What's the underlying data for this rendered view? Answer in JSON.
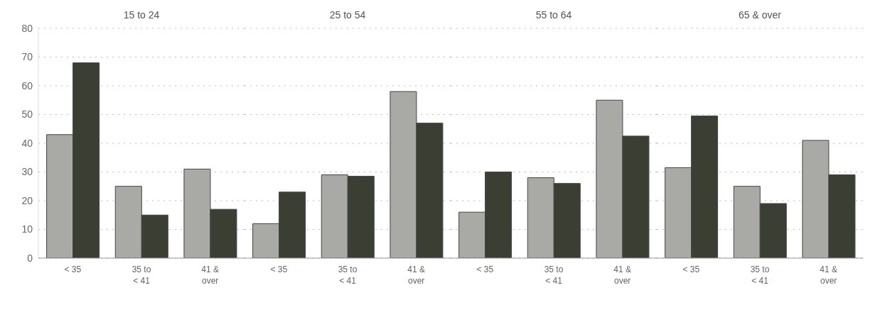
{
  "chart_data": [
    {
      "type": "bar",
      "title": "15 to 24",
      "categories": [
        "< 35",
        "35 to\n< 41",
        "41 &\nover"
      ],
      "series": [
        {
          "color": "#a9a9a6",
          "values": [
            43,
            25,
            31
          ]
        },
        {
          "color": "#3b3e33",
          "values": [
            68,
            15,
            17
          ]
        }
      ],
      "ylim": [
        0,
        80
      ],
      "yticks": [
        0,
        10,
        20,
        30,
        40,
        50,
        60,
        70,
        80
      ],
      "grid": "y",
      "legend": false
    },
    {
      "type": "bar",
      "title": "25 to 54",
      "categories": [
        "< 35",
        "35 to\n< 41",
        "41 &\nover"
      ],
      "series": [
        {
          "color": "#a9a9a6",
          "values": [
            12,
            29,
            58
          ]
        },
        {
          "color": "#3b3e33",
          "values": [
            23,
            28.5,
            47
          ]
        }
      ],
      "ylim": [
        0,
        80
      ],
      "yticks": [
        0,
        10,
        20,
        30,
        40,
        50,
        60,
        70,
        80
      ],
      "grid": "y",
      "legend": false,
      "tick_labels": "x"
    },
    {
      "type": "bar",
      "title": "55 to 64",
      "categories": [
        "< 35",
        "35 to\n< 41",
        "41 &\nover"
      ],
      "series": [
        {
          "color": "#a9a9a6",
          "values": [
            16,
            28,
            55
          ]
        },
        {
          "color": "#3b3e33",
          "values": [
            30,
            26,
            42.5
          ]
        }
      ],
      "ylim": [
        0,
        80
      ],
      "yticks": [
        0,
        10,
        20,
        30,
        40,
        50,
        60,
        70,
        80
      ],
      "grid": "y",
      "legend": false,
      "tick_labels": "x"
    },
    {
      "type": "bar",
      "title": "65 & over",
      "categories": [
        "< 35",
        "35 to\n< 41",
        "41 &\nover"
      ],
      "series": [
        {
          "color": "#a9a9a6",
          "values": [
            31.5,
            25,
            41
          ]
        },
        {
          "color": "#3b3e33",
          "values": [
            49.5,
            19,
            29
          ]
        }
      ],
      "ylim": [
        0,
        80
      ],
      "yticks": [
        0,
        10,
        20,
        30,
        40,
        50,
        60,
        70,
        80
      ],
      "grid": "y",
      "legend": false,
      "tick_labels": "x"
    }
  ]
}
